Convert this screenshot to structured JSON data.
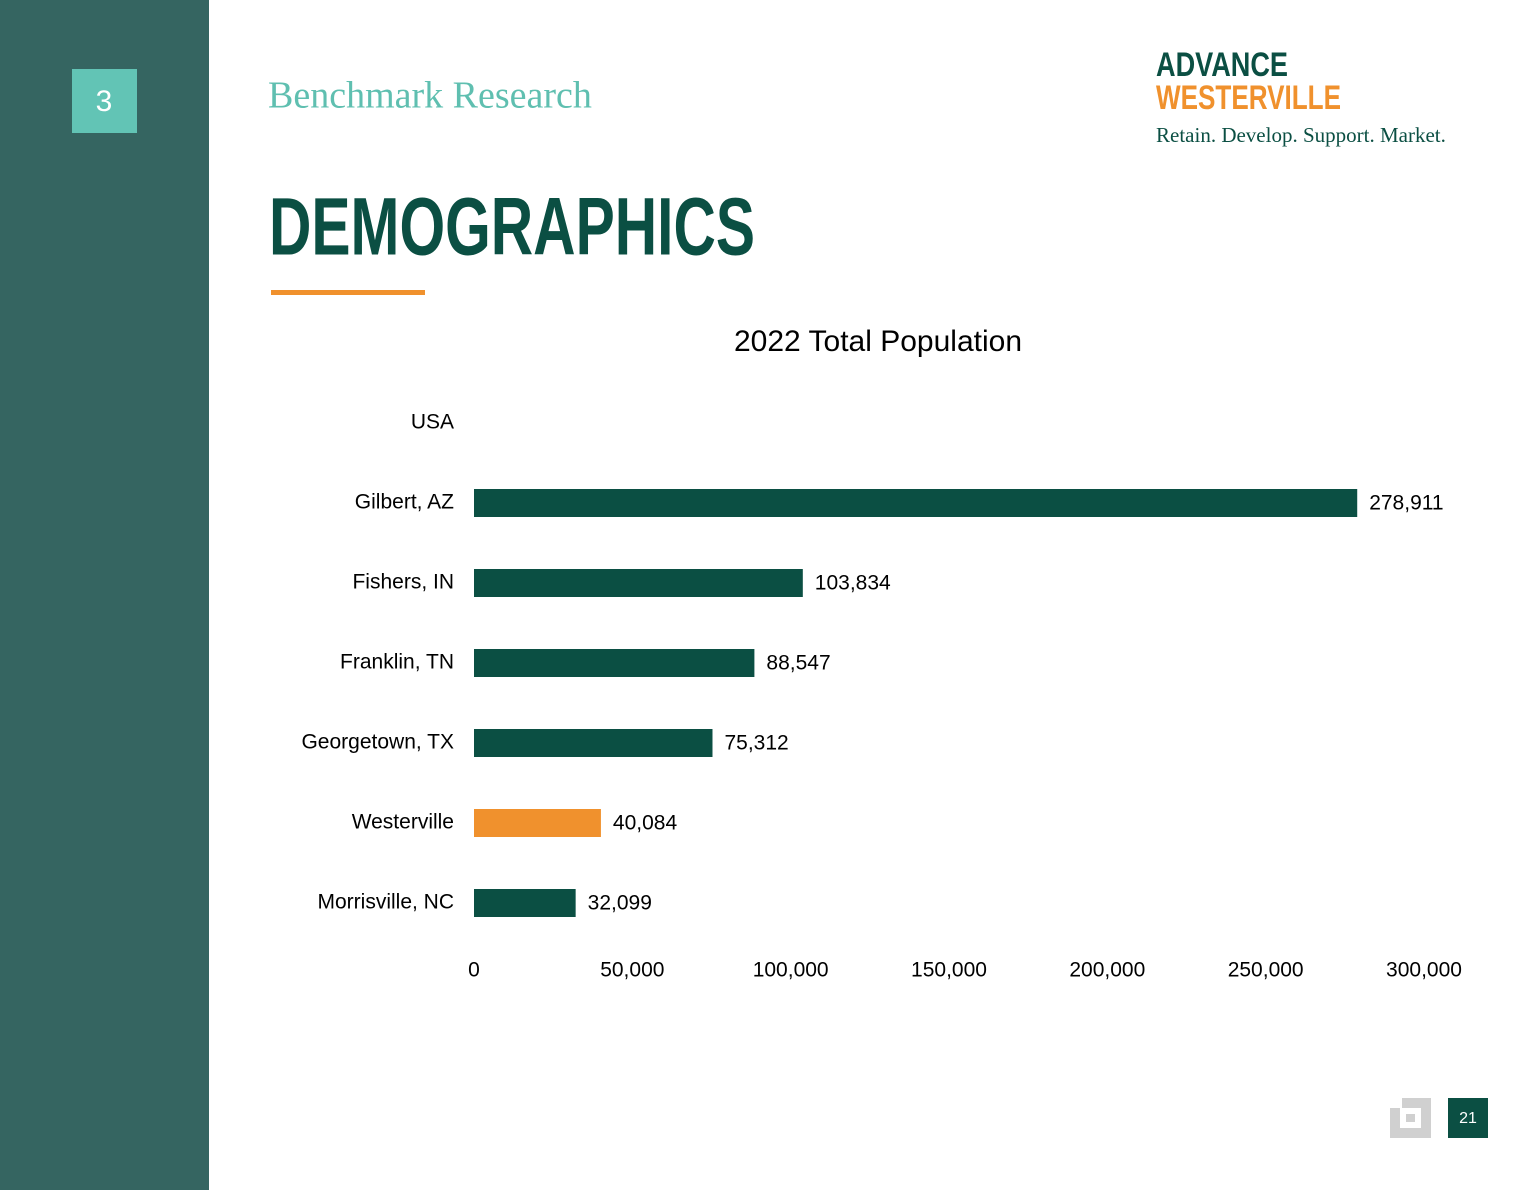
{
  "slide": {
    "section_number": "3",
    "section_title": "Benchmark Research",
    "logo_line1": "ADVANCE",
    "logo_line2": "WESTERVILLE",
    "tagline": "Retain. Develop. Support. Market.",
    "heading": "DEMOGRAPHICS",
    "page_number": "21"
  },
  "chart_data": {
    "type": "bar",
    "orientation": "horizontal",
    "title": "2022 Total Population",
    "categories": [
      "USA",
      "Gilbert, AZ",
      "Fishers, IN",
      "Franklin, TN",
      "Georgetown, TX",
      "Westerville",
      "Morrisville, NC"
    ],
    "values": [
      null,
      278911,
      103834,
      88547,
      75312,
      40084,
      32099
    ],
    "value_labels": [
      null,
      "278,911",
      "103,834",
      "88,547",
      "75,312",
      "40,084",
      "32,099"
    ],
    "colors": [
      "#0b4f43",
      "#0b4f43",
      "#0b4f43",
      "#0b4f43",
      "#0b4f43",
      "#f0912d",
      "#0b4f43"
    ],
    "xlim": [
      0,
      300000
    ],
    "xticks": [
      0,
      {
        "value": 50000,
        "label": "50,000"
      },
      {
        "value": 100000,
        "label": "100,000"
      },
      {
        "value": 150000,
        "label": "150,000"
      },
      {
        "value": 200000,
        "label": "200,000"
      },
      {
        "value": 250000,
        "label": "250,000"
      },
      {
        "value": 300000,
        "label": "300,000"
      }
    ],
    "grid": false
  }
}
